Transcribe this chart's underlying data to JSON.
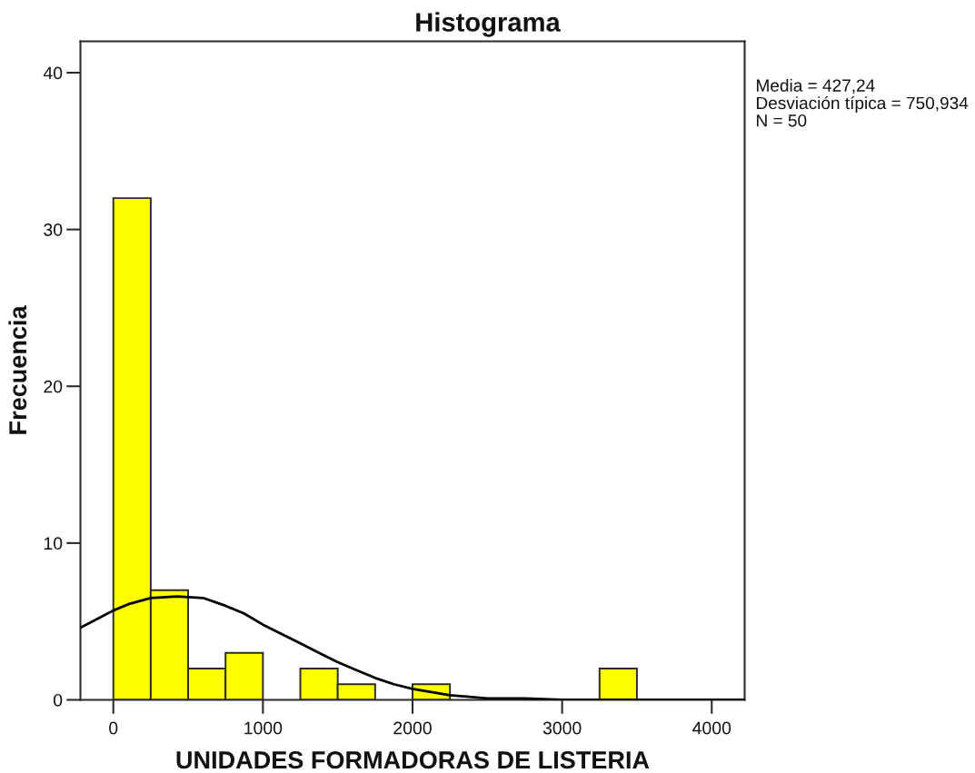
{
  "chart_data": {
    "type": "histogram",
    "title": "Histograma",
    "xlabel": "UNIDADES FORMADORAS DE LISTERIA",
    "ylabel": "Frecuencia",
    "bins": [
      0,
      250,
      500,
      750,
      1000,
      1250,
      1500,
      1750,
      2000,
      2250,
      2500,
      2750,
      3000,
      3250,
      3500
    ],
    "series": [
      {
        "type": "histogram",
        "color": "#ffff00",
        "values": [
          32,
          7,
          2,
          3,
          0,
          2,
          1,
          0,
          1,
          0,
          0,
          0,
          0,
          2
        ]
      },
      {
        "type": "line",
        "color": "#000000",
        "x": [
          -220,
          -100,
          0,
          100,
          250,
          427,
          600,
          750,
          875,
          1000,
          1125,
          1250,
          1375,
          1500,
          1625,
          1750,
          1875,
          2000,
          2125,
          2250,
          2500,
          2750,
          3000,
          3500,
          4000,
          4220
        ],
        "values": [
          4.6,
          5.2,
          5.7,
          6.1,
          6.5,
          6.6,
          6.5,
          6.0,
          5.5,
          4.8,
          4.2,
          3.6,
          3.0,
          2.4,
          1.9,
          1.4,
          1.0,
          0.7,
          0.5,
          0.3,
          0.1,
          0.1,
          0,
          0,
          0,
          0
        ]
      }
    ],
    "xlim": [
      -220,
      4220
    ],
    "ylim": [
      0,
      42
    ],
    "xticks": [
      0,
      1000,
      2000,
      3000,
      4000
    ],
    "yticks": [
      0,
      10,
      20,
      30,
      40
    ],
    "annotations": [
      "Media = 427,24",
      "Desviación típica = 750,934",
      "N = 50"
    ]
  }
}
